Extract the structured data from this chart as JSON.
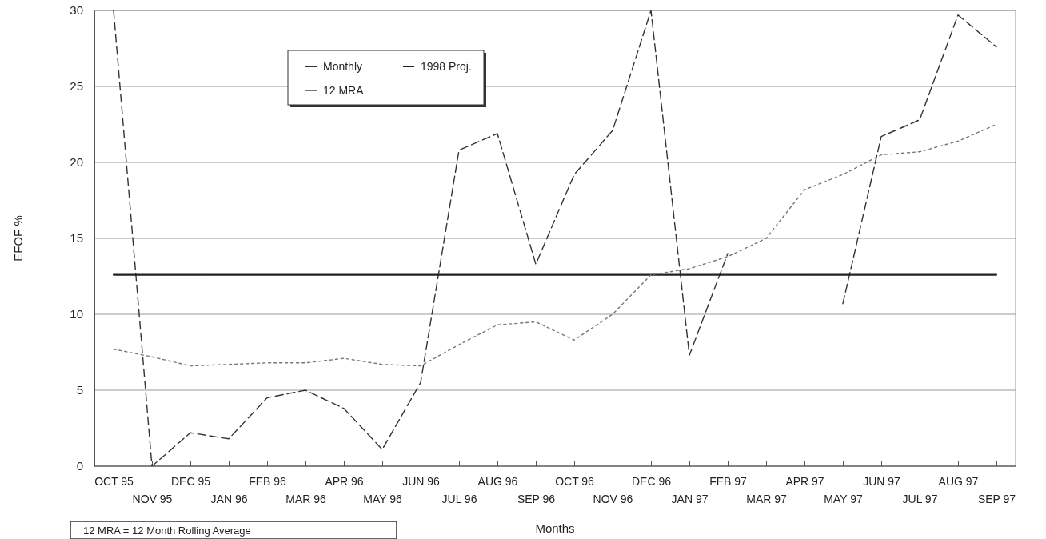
{
  "chart_data": {
    "type": "line",
    "xlabel": "Months",
    "ylabel": "EFOF %",
    "categories": [
      "OCT 95",
      "NOV 95",
      "DEC 95",
      "JAN 96",
      "FEB 96",
      "MAR 96",
      "APR 96",
      "MAY 96",
      "JUN 96",
      "JUL 96",
      "AUG 96",
      "SEP 96",
      "OCT 96",
      "NOV 96",
      "DEC 96",
      "JAN 97",
      "FEB 97",
      "MAR 97",
      "APR 97",
      "MAY 97",
      "JUN 97",
      "JUL 97",
      "AUG 97",
      "SEP 97"
    ],
    "series": [
      {
        "name": "Monthly",
        "color": "#333333",
        "line_style": "dashed",
        "values": [
          30,
          0,
          2.2,
          1.8,
          4.5,
          5.0,
          3.8,
          1.1,
          5.5,
          20.8,
          21.9,
          13.3,
          19.2,
          22.1,
          30,
          7.3,
          14.0,
          null,
          null,
          10.7,
          21.7,
          22.8,
          29.7,
          27.6
        ]
      },
      {
        "name": "1998 Proj.",
        "color": "#222222",
        "line_style": "solid",
        "values": [
          12.6,
          12.6,
          12.6,
          12.6,
          12.6,
          12.6,
          12.6,
          12.6,
          12.6,
          12.6,
          12.6,
          12.6,
          12.6,
          12.6,
          12.6,
          12.6,
          12.6,
          12.6,
          12.6,
          12.6,
          12.6,
          12.6,
          12.6,
          12.6
        ]
      },
      {
        "name": "12 MRA",
        "color": "#777777",
        "line_style": "dotted",
        "values": [
          7.7,
          7.2,
          6.6,
          6.7,
          6.8,
          6.8,
          7.1,
          6.7,
          6.6,
          8.0,
          9.3,
          9.5,
          8.3,
          10.0,
          12.6,
          13.0,
          13.8,
          15.0,
          18.2,
          19.2,
          20.5,
          20.7,
          21.4,
          22.5
        ]
      }
    ],
    "ylim": [
      0,
      30
    ],
    "yticks": [
      0,
      5,
      10,
      15,
      20,
      25,
      30
    ],
    "grid": "y",
    "legend": "top",
    "annotations": [
      "12 MRA = 12 Month Rolling Average"
    ]
  }
}
